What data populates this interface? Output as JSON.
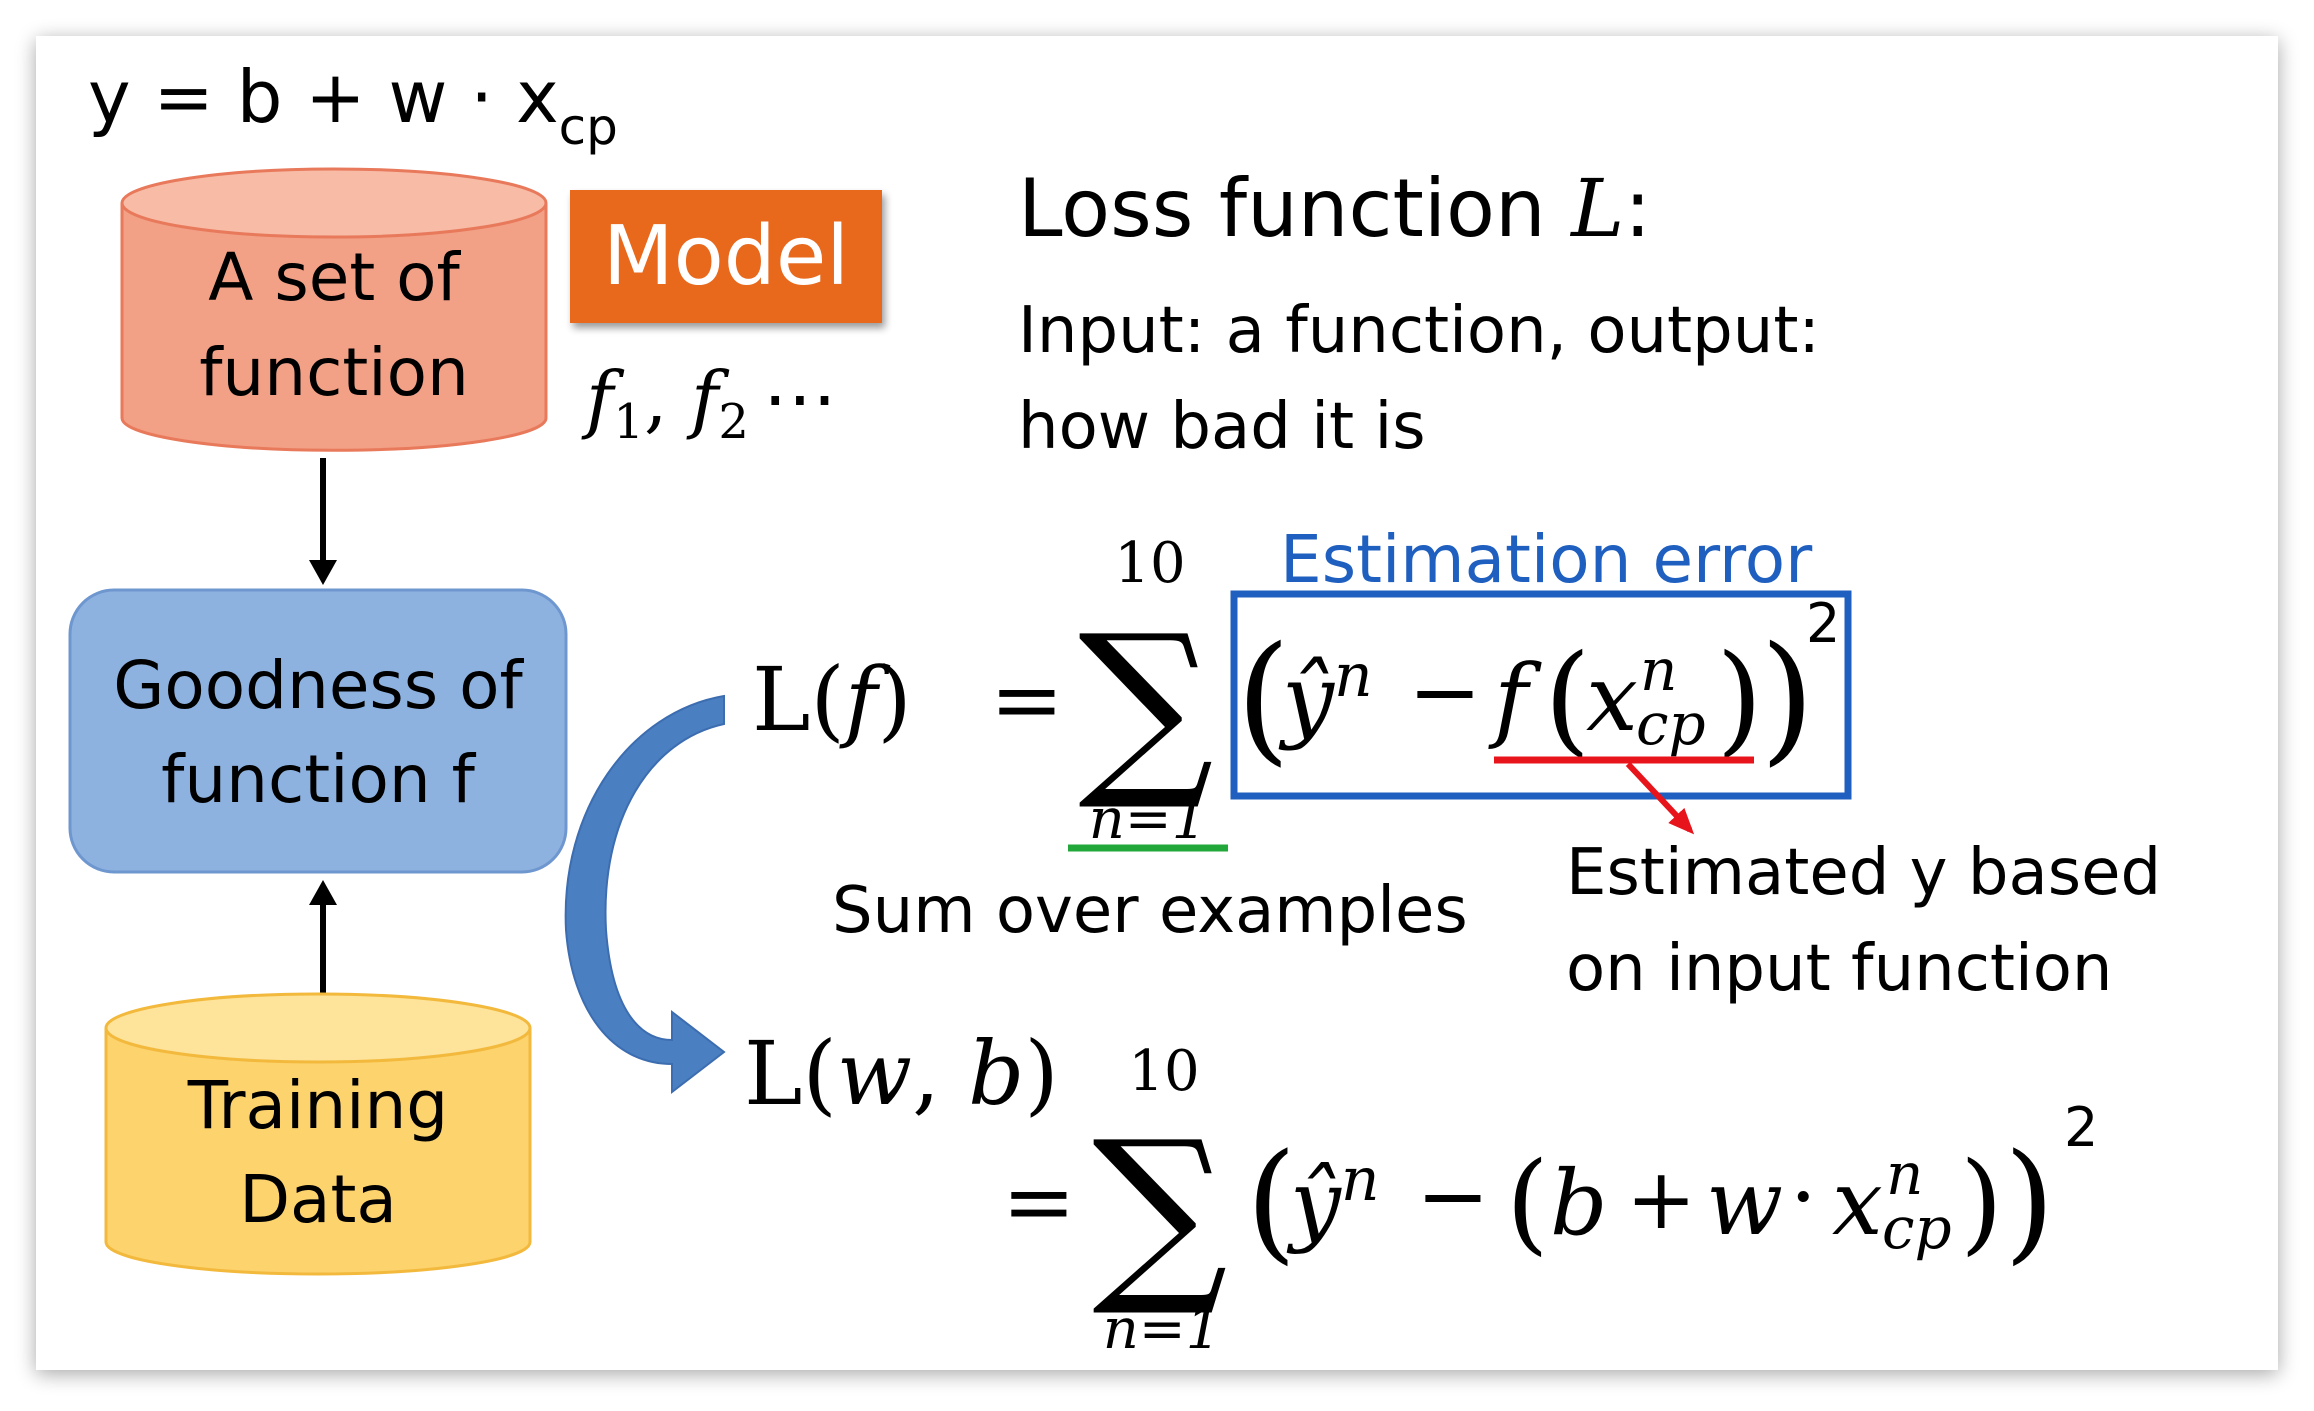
{
  "model_equation": {
    "base": "y = b + w · x",
    "subscript": "cp"
  },
  "cylinder_top": {
    "line1": "A set of",
    "line2": "function"
  },
  "model_badge": "Model",
  "function_list": {
    "f1_base": "f",
    "f1_sub": "1",
    "sep": ", ",
    "f2_base": "f",
    "f2_sub": "2",
    "ellipsis": "⋯"
  },
  "goodness_box": {
    "line1": "Goodness of",
    "line2": "function f"
  },
  "cylinder_bottom": {
    "line1": "Training",
    "line2": "Data"
  },
  "loss_title": {
    "text": "Loss function ",
    "var": "L",
    "colon": ":"
  },
  "loss_desc": {
    "line1": "Input: a function, output:",
    "line2": "how bad it is"
  },
  "eq1": {
    "lhs_L": "L(",
    "lhs_f": "f",
    "lhs_close": ")",
    "equals": "=",
    "sum_upper": "10",
    "sum_symbol": "∑",
    "sum_lower": "n=1",
    "open_paren": "(",
    "yhat": "ŷ",
    "sup_n": "n",
    "minus": "−",
    "f": "f",
    "inner_open": "(",
    "x": "x",
    "x_sup": "n",
    "x_sub": "cp",
    "inner_close": ")",
    "close_paren": ")",
    "power": "2"
  },
  "estimation_error_label": "Estimation error",
  "sum_over_label": "Sum over examples",
  "estimated_label": {
    "line1": "Estimated y based",
    "line2": "on input function"
  },
  "eq2": {
    "lhs_L": "L(",
    "lhs_w": "w",
    "lhs_sep": ", ",
    "lhs_b": "b",
    "lhs_close": ")",
    "equals": "=",
    "sum_upper": "10",
    "sum_symbol": "∑",
    "sum_lower": "n=1",
    "open_paren": "(",
    "yhat": "ŷ",
    "sup_n": "n",
    "minus": "−",
    "inner_open": "(",
    "b": "b",
    "plus": "+",
    "w": "w",
    "dot": "·",
    "x": "x",
    "x_sup": "n",
    "x_sub": "cp",
    "inner_close": ")",
    "close_paren": ")",
    "power": "2"
  },
  "colors": {
    "cylinder_top_fill": "#f2a086",
    "cylinder_top_stroke": "#e8795b",
    "model_badge": "#e8671f",
    "goodness_fill": "#8eb2e0",
    "goodness_stroke": "#6f97cf",
    "cylinder_bottom_fill": "#fdd36e",
    "cylinder_bottom_stroke": "#f2b93d",
    "estimation_blue": "#1f5fbf",
    "underline_red": "#e8141c",
    "underline_green": "#22a83a",
    "curved_arrow": "#4a7fc1"
  }
}
